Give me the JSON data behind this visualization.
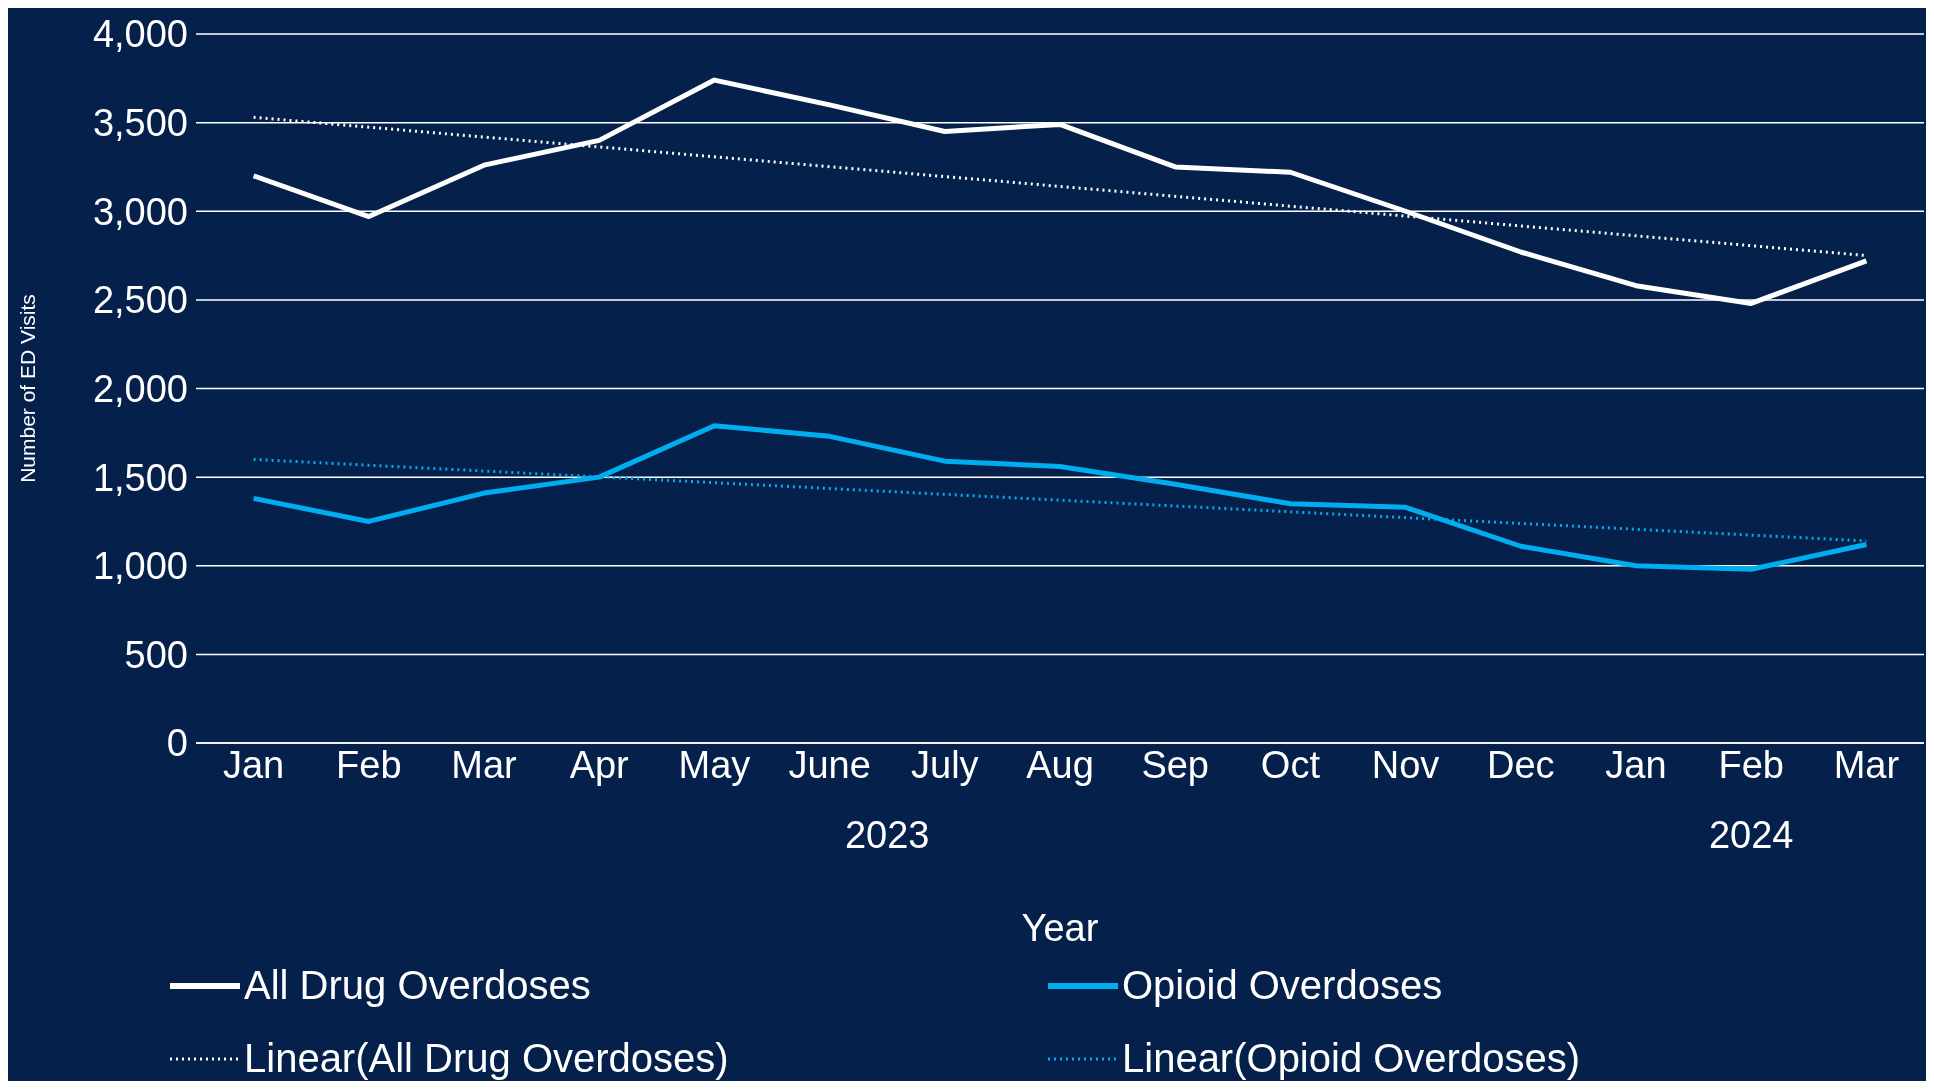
{
  "chart_data": {
    "type": "line",
    "ylabel": "Number of ED Visits",
    "xlabel": "Year",
    "categories": [
      "Jan",
      "Feb",
      "Mar",
      "Apr",
      "May",
      "June",
      "July",
      "Aug",
      "Sep",
      "Oct",
      "Nov",
      "Dec",
      "Jan",
      "Feb",
      "Mar"
    ],
    "annotations": [
      "2023",
      "2024"
    ],
    "series": [
      {
        "name": "All Drug Overdoses",
        "color": "#ffffff",
        "line_style": "solid",
        "values": [
          3200,
          2970,
          3260,
          3400,
          3740,
          3600,
          3450,
          3490,
          3250,
          3220,
          3000,
          2770,
          2580,
          2480,
          2720
        ]
      },
      {
        "name": "Opioid Overdoses",
        "color": "#00aeef",
        "line_style": "solid",
        "values": [
          1380,
          1250,
          1410,
          1500,
          1790,
          1730,
          1590,
          1560,
          1460,
          1350,
          1330,
          1110,
          1000,
          980,
          1120
        ]
      },
      {
        "name": "Linear(All Drug Overdoses)",
        "color": "#ffffff",
        "line_style": "dotted",
        "values": [
          3530,
          null,
          null,
          null,
          null,
          null,
          null,
          null,
          null,
          null,
          null,
          null,
          null,
          null,
          2750
        ]
      },
      {
        "name": "Linear(Opioid Overdoses)",
        "color": "#00aeef",
        "line_style": "dotted",
        "values": [
          1600,
          null,
          null,
          null,
          null,
          null,
          null,
          null,
          null,
          null,
          null,
          null,
          null,
          null,
          1140
        ]
      }
    ],
    "ylim": [
      0,
      4000
    ],
    "yticks": [
      0,
      500,
      {
        "value": 1000,
        "label": "1,000"
      },
      {
        "value": 1500,
        "label": "1,500"
      },
      {
        "value": 2000,
        "label": "2,000"
      },
      {
        "value": 2500,
        "label": "2,500"
      },
      {
        "value": 3000,
        "label": "3,000"
      },
      {
        "value": 3500,
        "label": "3,500"
      },
      {
        "value": 4000,
        "label": "4,000"
      }
    ],
    "grid": "y",
    "legend": "bottom",
    "marker": "none"
  }
}
